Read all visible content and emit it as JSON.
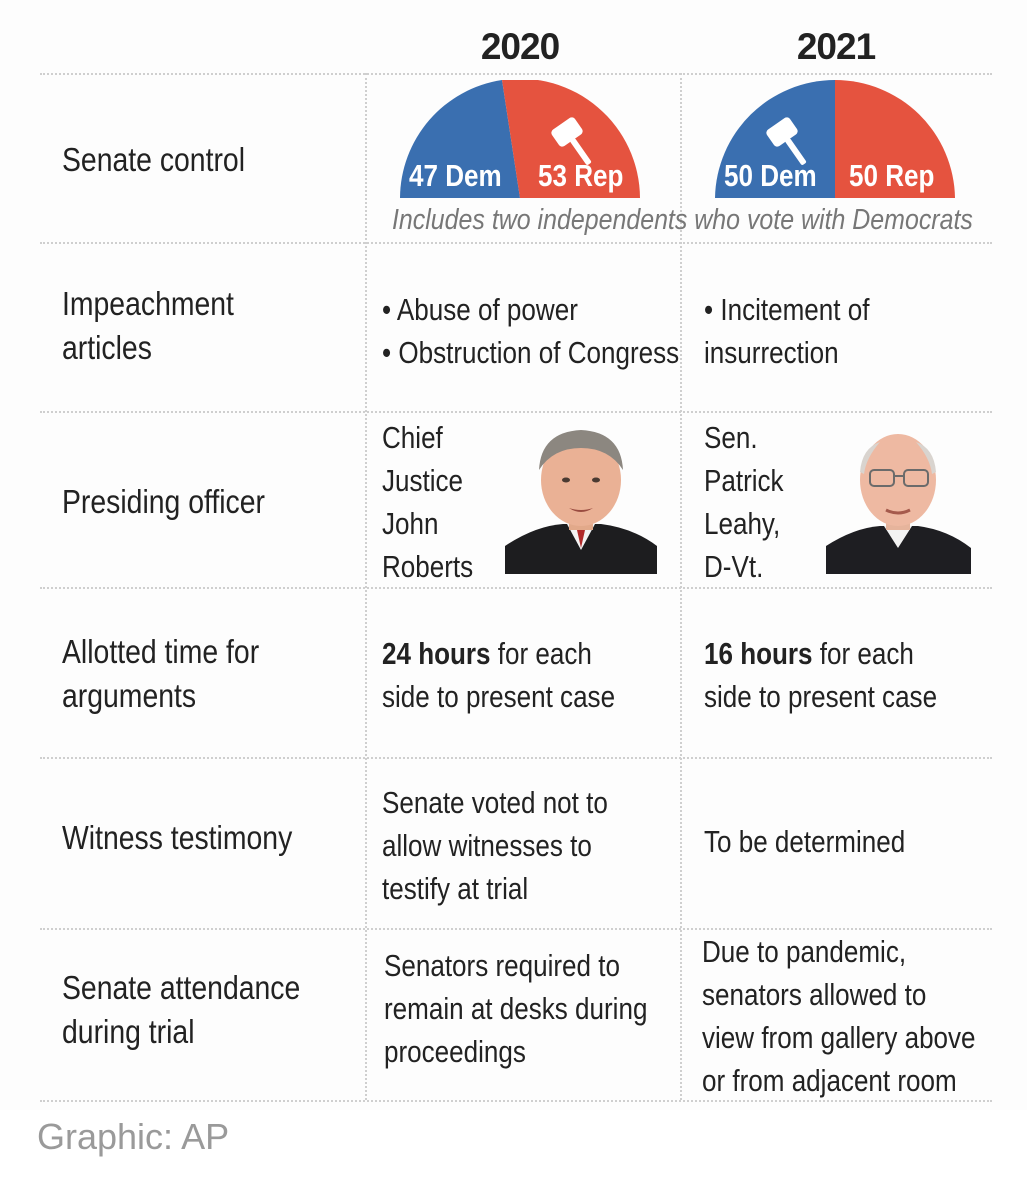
{
  "colors": {
    "democrat": "#3a6fb0",
    "republican": "#e5533f",
    "credit": "#9a9a9a",
    "note": "#777777"
  },
  "header": {
    "year_2020": "2020",
    "year_2021": "2021"
  },
  "senate_control": {
    "label": "Senate control",
    "y2020": {
      "dem_label": "47 Dem",
      "rep_label": "53 Rep",
      "dem_seats": 47,
      "rep_seats": 53
    },
    "y2021": {
      "dem_label": "50 Dem",
      "rep_label": "50 Rep",
      "dem_seats": 50,
      "rep_seats": 50
    },
    "note": "Includes two independents who vote with Democrats",
    "gavel_icon": "gavel-icon"
  },
  "impeachment": {
    "label_line1": "Impeachment",
    "label_line2": "articles",
    "y2020_line1": "• Abuse of power",
    "y2020_line2": "• Obstruction of Congress",
    "y2021_line1": "• Incitement of",
    "y2021_line2": "insurrection"
  },
  "presiding": {
    "label": "Presiding officer",
    "y2020_lines": [
      "Chief",
      "Justice",
      "John",
      "Roberts"
    ],
    "y2021_lines": [
      "Sen.",
      "Patrick",
      "Leahy,",
      "D-Vt."
    ],
    "y2020_photo": "john-roberts-portrait",
    "y2021_photo": "patrick-leahy-portrait"
  },
  "allotted": {
    "label_line1": "Allotted time for",
    "label_line2": "arguments",
    "y2020_bold": "24 hours",
    "y2020_rest": " for each",
    "y2020_line2": "side to present case",
    "y2021_bold": "16 hours",
    "y2021_rest": " for each",
    "y2021_line2": "side to present case"
  },
  "witness": {
    "label": "Witness testimony",
    "y2020_lines": [
      "Senate voted not to",
      "allow witnesses to",
      "testify at trial"
    ],
    "y2021": "To be determined"
  },
  "attendance": {
    "label_line1": "Senate attendance",
    "label_line2": "during trial",
    "y2020_lines": [
      "Senators required to",
      "remain at desks during",
      "proceedings"
    ],
    "y2021_lines": [
      "Due to pandemic,",
      "senators allowed to",
      "view from gallery above",
      "or from adjacent room"
    ]
  },
  "credit": "Graphic: AP"
}
